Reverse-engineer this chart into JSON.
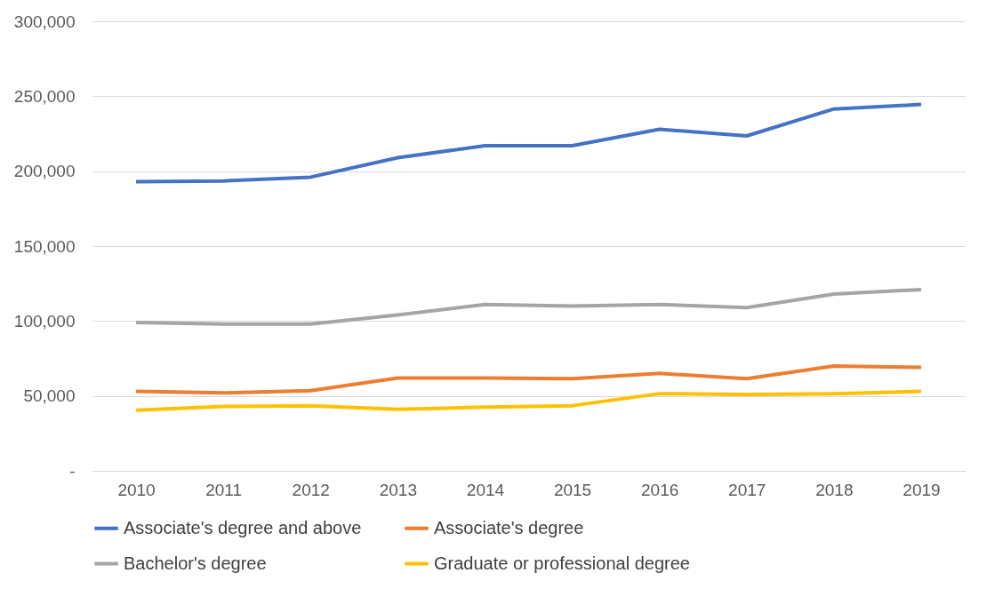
{
  "chart_data": {
    "type": "line",
    "categories": [
      "2010",
      "2011",
      "2012",
      "2013",
      "2014",
      "2015",
      "2016",
      "2017",
      "2018",
      "2019"
    ],
    "series": [
      {
        "name": "Associate's degree and above",
        "color": "#4472c4",
        "values": [
          193000,
          193500,
          196000,
          209000,
          217000,
          217000,
          228000,
          223500,
          241500,
          244500
        ]
      },
      {
        "name": "Associate's degree",
        "color": "#ed7d31",
        "values": [
          53000,
          52000,
          53500,
          62000,
          62000,
          61500,
          65000,
          61500,
          70000,
          69000
        ]
      },
      {
        "name": "Bachelor's degree",
        "color": "#a5a5a5",
        "values": [
          99000,
          98000,
          98000,
          104000,
          111000,
          110000,
          111000,
          109000,
          118000,
          121000
        ]
      },
      {
        "name": "Graduate or professional degree",
        "color": "#ffc000",
        "values": [
          40500,
          43000,
          43500,
          41000,
          42500,
          43500,
          51500,
          51000,
          51500,
          53000
        ]
      }
    ],
    "ylim": [
      0,
      300000
    ],
    "yticks": [
      {
        "value": 0,
        "label": "-"
      },
      {
        "value": 50000,
        "label": "50,000"
      },
      {
        "value": 100000,
        "label": "100,000"
      },
      {
        "value": 150000,
        "label": "150,000"
      },
      {
        "value": 200000,
        "label": "200,000"
      },
      {
        "value": 250000,
        "label": "250,000"
      },
      {
        "value": 300000,
        "label": "300,000"
      }
    ],
    "grid": "y",
    "legend": "bottom",
    "marker": "none",
    "line_style": "solid"
  }
}
